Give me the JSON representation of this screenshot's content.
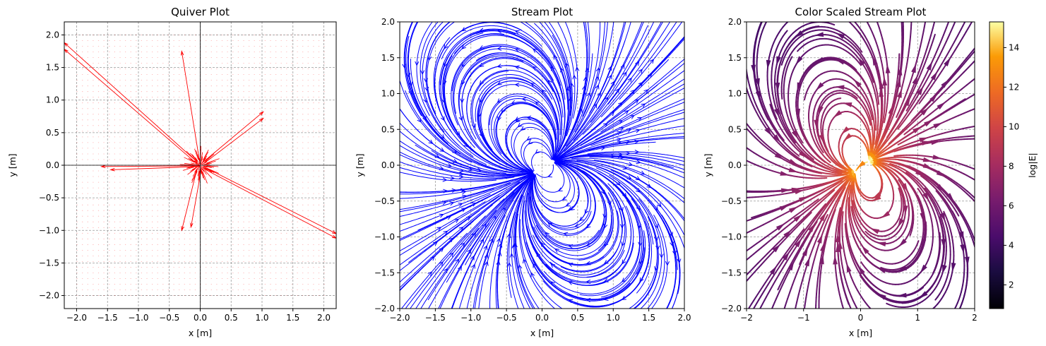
{
  "chart_data": [
    {
      "type": "quiver",
      "title": "Quiver Plot",
      "xlabel": "x [m]",
      "ylabel": "y [m]",
      "xlim": [
        -2.2,
        2.2
      ],
      "ylim": [
        -2.2,
        2.2
      ],
      "xticks": [
        "−2.0",
        "−1.5",
        "−1.0",
        "−0.5",
        "0.0",
        "0.5",
        "1.0",
        "1.5",
        "2.0"
      ],
      "yticks": [
        "−2.0",
        "−1.5",
        "−1.0",
        "−0.5",
        "0.0",
        "0.5",
        "1.0",
        "1.5",
        "2.0"
      ],
      "grid": true,
      "color": "#ff0000",
      "arrows": [
        {
          "x": -0.3,
          "y": 1.75,
          "tx": 0.0,
          "ty": 0.0
        },
        {
          "x": -2.2,
          "y": 1.88,
          "tx": -0.05,
          "ty": 0.05
        },
        {
          "x": -2.2,
          "y": 1.78,
          "tx": -0.05,
          "ty": 0.02
        },
        {
          "x": 1.02,
          "y": 0.82,
          "tx": 0.05,
          "ty": 0.05
        },
        {
          "x": 1.02,
          "y": 0.72,
          "tx": 0.05,
          "ty": 0.02
        },
        {
          "x": 2.2,
          "y": -1.05,
          "tx": 0.05,
          "ty": -0.02
        },
        {
          "x": 2.2,
          "y": -1.12,
          "tx": 0.05,
          "ty": -0.05
        },
        {
          "x": -0.3,
          "y": -1.0,
          "tx": -0.05,
          "ty": -0.05
        },
        {
          "x": -0.15,
          "y": -0.95,
          "tx": 0.02,
          "ty": -0.05
        },
        {
          "x": -1.45,
          "y": -0.07,
          "tx": 0.0,
          "ty": -0.02
        },
        {
          "x": -1.6,
          "y": -0.02,
          "tx": 0.0,
          "ty": -0.01
        }
      ]
    },
    {
      "type": "stream",
      "title": "Stream Plot",
      "xlabel": "x [m]",
      "ylabel": "y [m]",
      "xlim": [
        -2.0,
        2.0
      ],
      "ylim": [
        -2.0,
        2.0
      ],
      "xticks": [
        "−2.0",
        "−1.5",
        "−1.0",
        "−0.5",
        "0.0",
        "0.5",
        "1.0",
        "1.5",
        "2.0"
      ],
      "yticks": [
        "−2.0",
        "−1.5",
        "−1.0",
        "−0.5",
        "0.0",
        "0.5",
        "1.0",
        "1.5",
        "2.0"
      ],
      "grid": true,
      "color": "#0000ff",
      "sources": [
        {
          "x": 0.15,
          "y": 0.05,
          "q": 1
        },
        {
          "x": -0.1,
          "y": -0.1,
          "q": -1
        }
      ]
    },
    {
      "type": "stream",
      "title": "Color Scaled Stream Plot",
      "xlabel": "x [m]",
      "ylabel": "y [m]",
      "xlim": [
        -2,
        2
      ],
      "ylim": [
        -2,
        2
      ],
      "xticks": [
        "−2",
        "−1",
        "0",
        "1",
        "2"
      ],
      "yticks": [
        "−2.0",
        "−1.5",
        "−1.0",
        "−0.5",
        "0.0",
        "0.5",
        "1.0",
        "1.5",
        "2.0"
      ],
      "grid": true,
      "colormap": "inferno",
      "colorbar": {
        "label": "log|E|",
        "range": [
          0.8,
          15.3
        ],
        "ticks": [
          "2",
          "4",
          "6",
          "8",
          "10",
          "12",
          "14"
        ],
        "tick_values": [
          2,
          4,
          6,
          8,
          10,
          12,
          14
        ]
      },
      "sources": [
        {
          "x": 0.15,
          "y": 0.05,
          "q": 1
        },
        {
          "x": -0.1,
          "y": -0.1,
          "q": -1
        }
      ]
    }
  ]
}
